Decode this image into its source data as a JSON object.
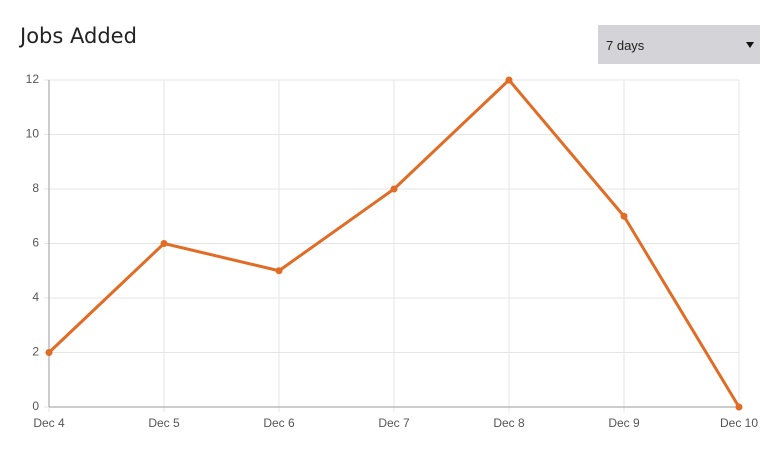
{
  "chart_data": {
    "type": "line",
    "title": "Jobs Added",
    "range_select": "7 days",
    "categories": [
      "Dec 4",
      "Dec 5",
      "Dec 6",
      "Dec 7",
      "Dec 8",
      "Dec 9",
      "Dec 10"
    ],
    "values": [
      2,
      6,
      5,
      8,
      12,
      7,
      0
    ],
    "color": "#e06c26",
    "ylim": [
      0,
      12
    ],
    "yticks": [
      0,
      2,
      4,
      6,
      8,
      10,
      12
    ],
    "grid": true
  }
}
